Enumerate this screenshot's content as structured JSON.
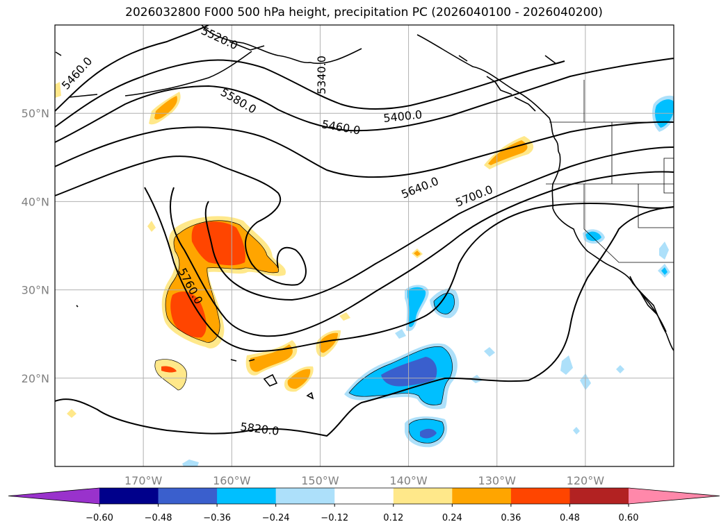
{
  "title": "2026032800 F000 500 hPa height, precipitation PC (2026040100 - 2026040200)",
  "axes": {
    "lon_labels": [
      "170°W",
      "160°W",
      "150°W",
      "140°W",
      "130°W",
      "120°W"
    ],
    "lat_labels": [
      "50°N",
      "40°N",
      "30°N",
      "20°N"
    ],
    "lon_values": [
      -170,
      -160,
      -150,
      -140,
      -130,
      -120
    ],
    "lat_values": [
      50,
      40,
      30,
      20
    ],
    "lon_range": [
      -180,
      -110
    ],
    "lat_range": [
      10,
      60
    ],
    "grid": true
  },
  "contours": {
    "field": "500 hPa height",
    "labels": [
      "5460.0",
      "5520.0",
      "5340.0",
      "5580.0",
      "5400.0",
      "5460.0",
      "5640.0",
      "5700.0",
      "5760.0",
      "5820.0"
    ]
  },
  "colorbar": {
    "ticks": [
      "−0.60",
      "−0.48",
      "−0.36",
      "−0.24",
      "−0.12",
      "0.12",
      "0.24",
      "0.36",
      "0.48",
      "0.60"
    ],
    "colors": [
      "#9932CC",
      "#00008B",
      "#3A5FCD",
      "#00BFFF",
      "#ADE0FA",
      "#FFFFFF",
      "#FFE88A",
      "#FFA500",
      "#FF4500",
      "#B22222",
      "#FF88AA"
    ],
    "extend": "both"
  }
}
